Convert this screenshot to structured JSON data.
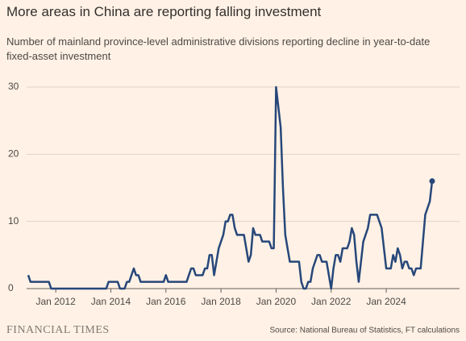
{
  "chart_data": {
    "type": "line",
    "title": "More areas in China are reporting falling investment",
    "subtitle": "Number of mainland province-level administrative divisions reporting decline in year-to-date fixed-asset investment",
    "source": "Source: National Bureau of Statistics, FT calculations",
    "brand": "FINANCIAL TIMES",
    "x": [
      "2011-01",
      "2011-02",
      "2011-03",
      "2011-04",
      "2011-05",
      "2011-06",
      "2011-07",
      "2011-08",
      "2011-09",
      "2011-10",
      "2011-11",
      "2011-12",
      "2012-01",
      "2012-02",
      "2012-03",
      "2012-04",
      "2012-05",
      "2012-06",
      "2012-07",
      "2012-08",
      "2012-09",
      "2012-10",
      "2012-11",
      "2012-12",
      "2013-01",
      "2013-02",
      "2013-03",
      "2013-04",
      "2013-05",
      "2013-06",
      "2013-07",
      "2013-08",
      "2013-09",
      "2013-10",
      "2013-11",
      "2013-12",
      "2014-01",
      "2014-02",
      "2014-03",
      "2014-04",
      "2014-05",
      "2014-06",
      "2014-07",
      "2014-08",
      "2014-09",
      "2014-10",
      "2014-11",
      "2014-12",
      "2015-01",
      "2015-02",
      "2015-03",
      "2015-04",
      "2015-05",
      "2015-06",
      "2015-07",
      "2015-08",
      "2015-09",
      "2015-10",
      "2015-11",
      "2015-12",
      "2016-01",
      "2016-02",
      "2016-03",
      "2016-04",
      "2016-05",
      "2016-06",
      "2016-07",
      "2016-08",
      "2016-09",
      "2016-10",
      "2016-11",
      "2016-12",
      "2017-01",
      "2017-02",
      "2017-03",
      "2017-04",
      "2017-05",
      "2017-06",
      "2017-07",
      "2017-08",
      "2017-09",
      "2017-10",
      "2017-11",
      "2017-12",
      "2018-01",
      "2018-02",
      "2018-03",
      "2018-04",
      "2018-05",
      "2018-06",
      "2018-07",
      "2018-08",
      "2018-09",
      "2018-10",
      "2018-11",
      "2018-12",
      "2019-01",
      "2019-02",
      "2019-03",
      "2019-04",
      "2019-05",
      "2019-06",
      "2019-07",
      "2019-08",
      "2019-09",
      "2019-10",
      "2019-11",
      "2019-12",
      "2020-01",
      "2020-02",
      "2020-03",
      "2020-04",
      "2020-05",
      "2020-06",
      "2020-07",
      "2020-08",
      "2020-09",
      "2020-10",
      "2020-11",
      "2020-12",
      "2021-01",
      "2021-02",
      "2021-03",
      "2021-04",
      "2021-05",
      "2021-06",
      "2021-07",
      "2021-08",
      "2021-09",
      "2021-10",
      "2021-11",
      "2021-12",
      "2022-01",
      "2022-02",
      "2022-03",
      "2022-04",
      "2022-05",
      "2022-06",
      "2022-07",
      "2022-08",
      "2022-09",
      "2022-10",
      "2022-11",
      "2022-12",
      "2023-01",
      "2023-02",
      "2023-03",
      "2023-04",
      "2023-05",
      "2023-06",
      "2023-07",
      "2023-08",
      "2023-09",
      "2023-10",
      "2023-11",
      "2023-12",
      "2024-01",
      "2024-02",
      "2024-03",
      "2024-04",
      "2024-05",
      "2024-06",
      "2024-07",
      "2024-08",
      "2024-09",
      "2024-10",
      "2024-11",
      "2024-12",
      "2025-01",
      "2025-02",
      "2025-03",
      "2025-04",
      "2025-05",
      "2025-06",
      "2025-07",
      "2025-08",
      "2025-09"
    ],
    "series": [
      {
        "color": "#26477a",
        "values": [
          2,
          1,
          1,
          1,
          1,
          1,
          1,
          1,
          1,
          1,
          0,
          0,
          0,
          0,
          0,
          0,
          0,
          0,
          0,
          0,
          0,
          0,
          0,
          0,
          0,
          0,
          0,
          0,
          0,
          0,
          0,
          0,
          0,
          0,
          0,
          1,
          1,
          1,
          1,
          1,
          0,
          0,
          0,
          1,
          1,
          2,
          3,
          2,
          2,
          1,
          1,
          1,
          1,
          1,
          1,
          1,
          1,
          1,
          1,
          1,
          2,
          1,
          1,
          1,
          1,
          1,
          1,
          1,
          1,
          1,
          2,
          3,
          3,
          2,
          2,
          2,
          2,
          3,
          3,
          5,
          5,
          2,
          4,
          6,
          7,
          8,
          10,
          10,
          11,
          11,
          9,
          8,
          8,
          8,
          8,
          6,
          4,
          5,
          9,
          8,
          8,
          8,
          7,
          7,
          7,
          7,
          6,
          6,
          30,
          27,
          24,
          15,
          8,
          6,
          4,
          4,
          4,
          4,
          4,
          1,
          0,
          0,
          1,
          1,
          3,
          4,
          5,
          5,
          4,
          4,
          4,
          2,
          0,
          3,
          5,
          5,
          4,
          6,
          6,
          6,
          7,
          9,
          8,
          4,
          1,
          4,
          7,
          8,
          9,
          11,
          11,
          11,
          11,
          10,
          9,
          6,
          3,
          3,
          3,
          5,
          4,
          6,
          5,
          3,
          4,
          4,
          3,
          3,
          2,
          3,
          3,
          3,
          7,
          11,
          12,
          13,
          16
        ]
      }
    ],
    "xlim": [
      "2011-01",
      "2025-09"
    ],
    "xticks": [
      {
        "value": "2012-01",
        "label": "Jan 2012"
      },
      {
        "value": "2014-01",
        "label": "Jan 2014"
      },
      {
        "value": "2016-01",
        "label": "Jan 2016"
      },
      {
        "value": "2018-01",
        "label": "Jan 2018"
      },
      {
        "value": "2020-01",
        "label": "Jan 2020"
      },
      {
        "value": "2022-01",
        "label": "Jan 2022"
      },
      {
        "value": "2024-01",
        "label": "Jan 2024"
      }
    ],
    "ylim": [
      0,
      30
    ],
    "yticks": [
      0,
      10,
      20,
      30
    ],
    "grid": true
  }
}
